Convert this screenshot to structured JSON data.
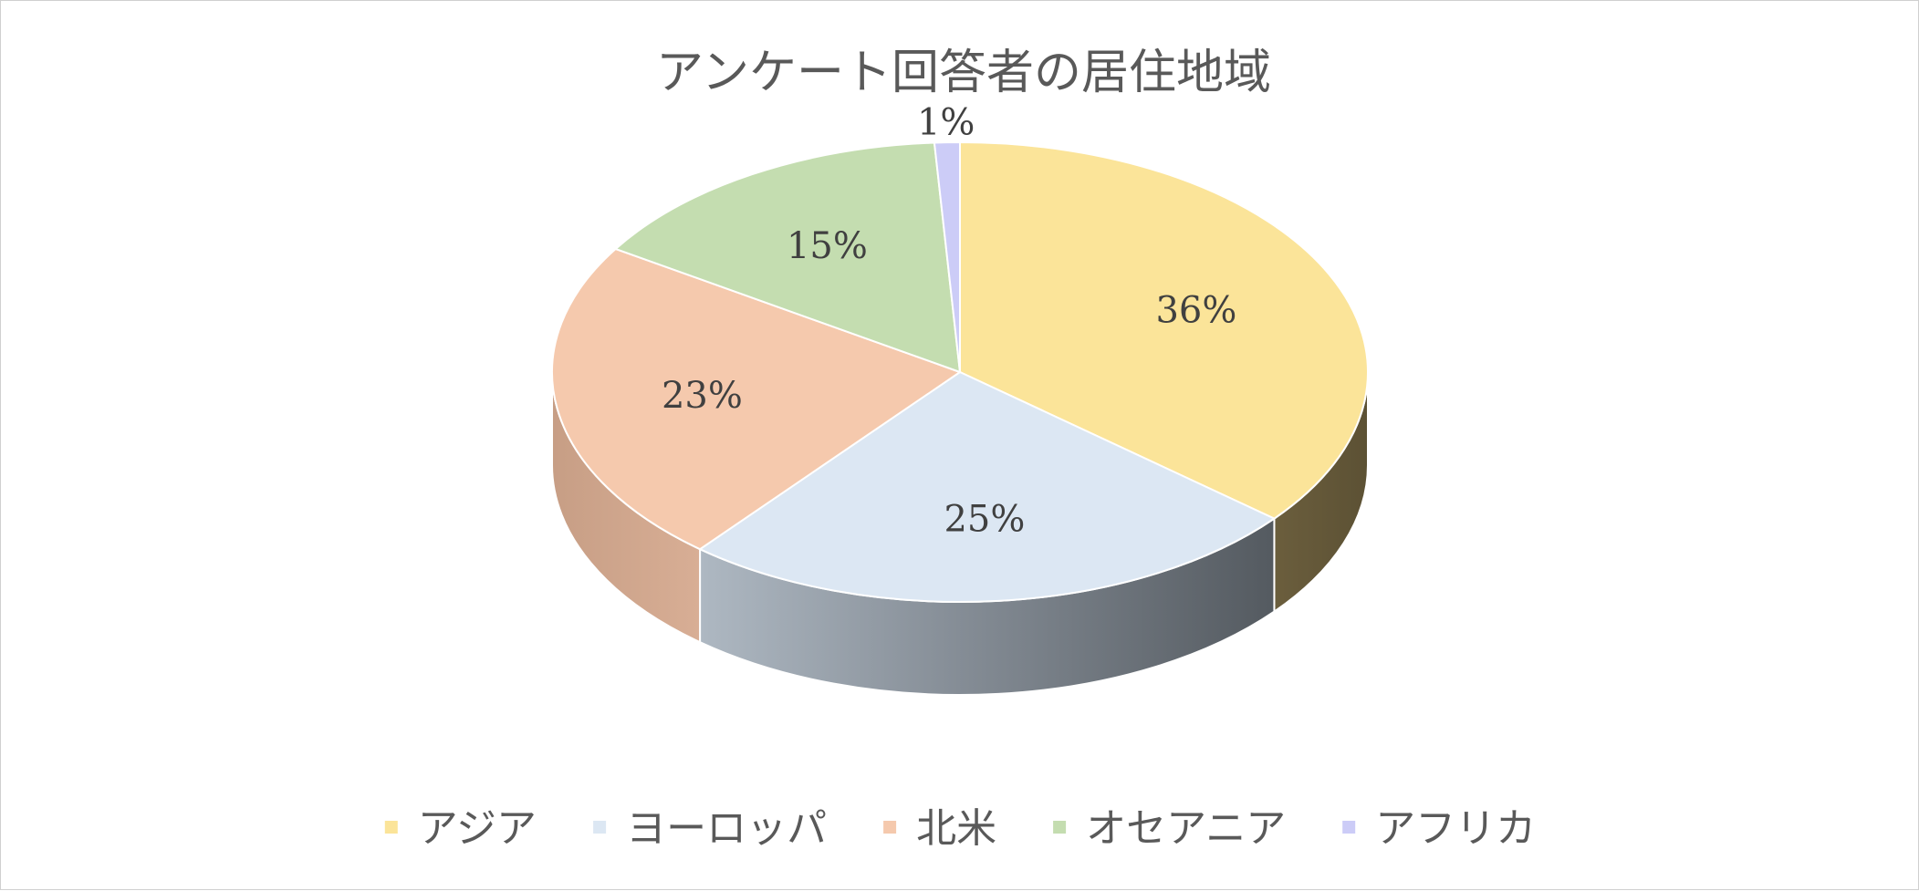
{
  "chart_data": {
    "type": "pie",
    "style": "3d",
    "title": "アンケート回答者の居住地域",
    "categories": [
      "アジア",
      "ヨーロッパ",
      "北米",
      "オセアニア",
      "アフリカ"
    ],
    "values": [
      36,
      25,
      23,
      15,
      1
    ],
    "data_labels": [
      "36%",
      "25%",
      "23%",
      "15%",
      "1%"
    ],
    "colors": [
      "#FBE499",
      "#DCE7F3",
      "#F5C9AD",
      "#C4DDB0",
      "#CCCCF7"
    ],
    "legend": "bottom"
  }
}
